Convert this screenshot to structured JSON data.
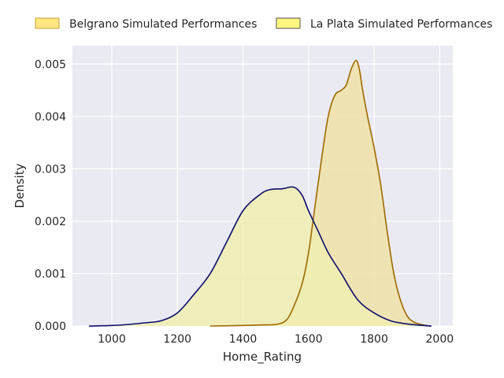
{
  "chart_data": {
    "type": "area",
    "xlabel": "Home_Rating",
    "ylabel": "Density",
    "xlim": [
      880,
      2040
    ],
    "ylim": [
      0,
      0.00535
    ],
    "x_ticks": [
      1000,
      1200,
      1400,
      1600,
      1800,
      2000
    ],
    "y_ticks": [
      0.0,
      0.001,
      0.002,
      0.003,
      0.004,
      0.005
    ],
    "y_tick_labels": [
      "0.000",
      "0.001",
      "0.002",
      "0.003",
      "0.004",
      "0.005"
    ],
    "grid": true,
    "legend_position": "top",
    "series": [
      {
        "name": "Belgrano Simulated Performances",
        "fill_color": "#f0e2a8",
        "legend_color": "#ffe680",
        "line_color": "#9e6a00",
        "points": [
          [
            1300,
            0.0
          ],
          [
            1400,
            1e-05
          ],
          [
            1450,
            2e-05
          ],
          [
            1500,
            3e-05
          ],
          [
            1530,
            0.0001
          ],
          [
            1550,
            0.0003
          ],
          [
            1580,
            0.0008
          ],
          [
            1600,
            0.0014
          ],
          [
            1620,
            0.0023
          ],
          [
            1640,
            0.0032
          ],
          [
            1660,
            0.004
          ],
          [
            1680,
            0.0044
          ],
          [
            1700,
            0.0045
          ],
          [
            1715,
            0.0046
          ],
          [
            1730,
            0.0049
          ],
          [
            1745,
            0.00507
          ],
          [
            1755,
            0.0049
          ],
          [
            1765,
            0.0045
          ],
          [
            1780,
            0.004
          ],
          [
            1800,
            0.0034
          ],
          [
            1820,
            0.0027
          ],
          [
            1840,
            0.0018
          ],
          [
            1860,
            0.001
          ],
          [
            1880,
            0.0005
          ],
          [
            1900,
            0.0002
          ],
          [
            1920,
            8e-05
          ],
          [
            1950,
            2e-05
          ],
          [
            1970,
            0.0
          ]
        ]
      },
      {
        "name": "La Plata Simulated Performances",
        "fill_color": "#f0eeb2",
        "legend_color": "#fff780",
        "line_color": "#0d0d6b",
        "points": [
          [
            930,
            0.0
          ],
          [
            1000,
            1e-05
          ],
          [
            1050,
            3e-05
          ],
          [
            1100,
            6e-05
          ],
          [
            1150,
            0.0001
          ],
          [
            1200,
            0.00025
          ],
          [
            1250,
            0.0006
          ],
          [
            1300,
            0.001
          ],
          [
            1350,
            0.0016
          ],
          [
            1400,
            0.0022
          ],
          [
            1450,
            0.0025
          ],
          [
            1480,
            0.0026
          ],
          [
            1520,
            0.00262
          ],
          [
            1555,
            0.00265
          ],
          [
            1580,
            0.0025
          ],
          [
            1600,
            0.0022
          ],
          [
            1630,
            0.0018
          ],
          [
            1660,
            0.0014
          ],
          [
            1700,
            0.001
          ],
          [
            1750,
            0.0005
          ],
          [
            1800,
            0.00025
          ],
          [
            1850,
            0.0001
          ],
          [
            1900,
            4e-05
          ],
          [
            1950,
            1e-05
          ],
          [
            1975,
            0.0
          ]
        ]
      }
    ]
  }
}
